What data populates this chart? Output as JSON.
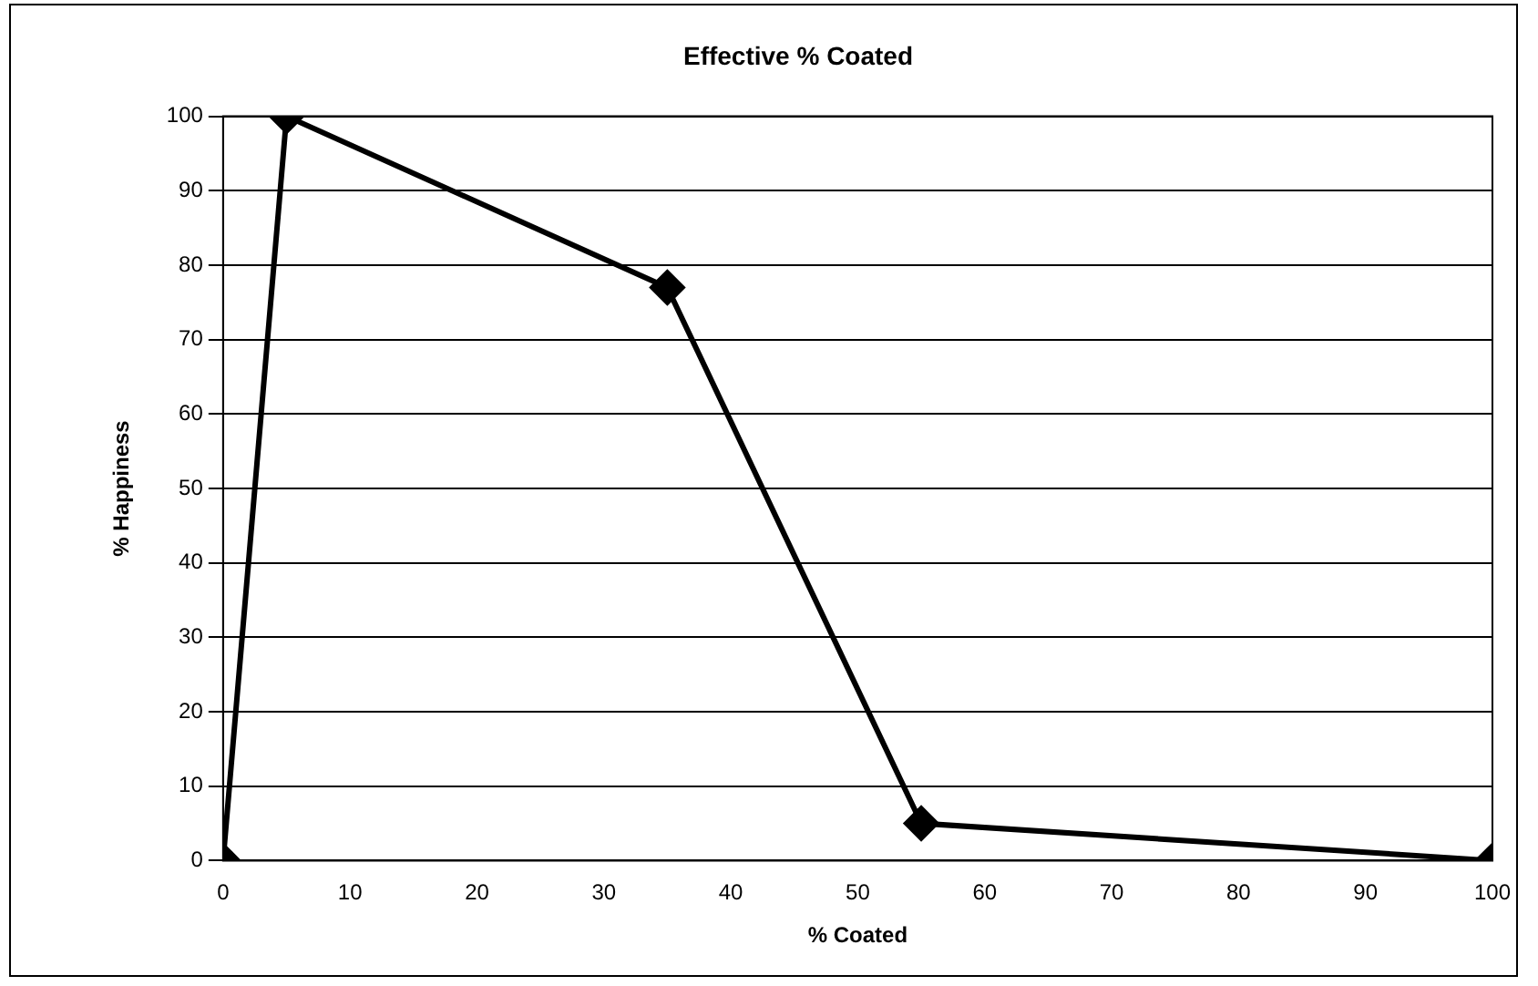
{
  "chart_data": {
    "type": "line",
    "title": "Effective % Coated",
    "xlabel": "% Coated",
    "ylabel": "% Happiness",
    "x": [
      0,
      5,
      35,
      55,
      100
    ],
    "series": [
      {
        "color": "#000000",
        "values": [
          0,
          100,
          77,
          5,
          0
        ]
      }
    ],
    "xlim": [
      0,
      100
    ],
    "xticks": [
      0,
      10,
      20,
      30,
      40,
      50,
      60,
      70,
      80,
      90,
      100
    ],
    "ylim": [
      0,
      100
    ],
    "yticks": [
      0,
      10,
      20,
      30,
      40,
      50,
      60,
      70,
      80,
      90,
      100
    ],
    "grid": "y",
    "legend": false,
    "marker": "diamond",
    "line_style": "solid"
  }
}
